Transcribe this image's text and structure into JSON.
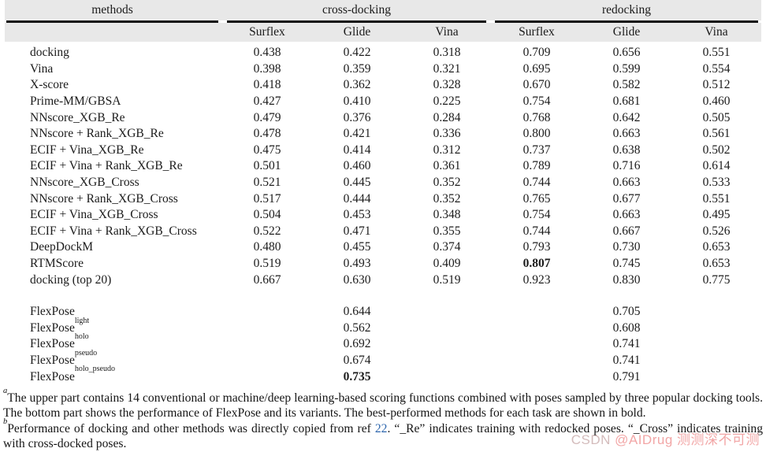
{
  "table": {
    "groups": [
      {
        "label": "methods"
      },
      {
        "label": "cross-docking"
      },
      {
        "label": "redocking"
      }
    ],
    "sub_headers": [
      "Surflex",
      "Glide",
      "Vina",
      "Surflex",
      "Glide",
      "Vina"
    ],
    "rows": [
      {
        "method": "docking",
        "sup": "",
        "values": [
          "0.438",
          "0.422",
          "0.318",
          "0.709",
          "0.656",
          "0.551"
        ],
        "bold": []
      },
      {
        "method": "Vina",
        "sup": "",
        "values": [
          "0.398",
          "0.359",
          "0.321",
          "0.695",
          "0.599",
          "0.554"
        ],
        "bold": []
      },
      {
        "method": "X-score",
        "sup": "",
        "values": [
          "0.418",
          "0.362",
          "0.328",
          "0.670",
          "0.582",
          "0.512"
        ],
        "bold": []
      },
      {
        "method": "Prime-MM/GBSA",
        "sup": "",
        "values": [
          "0.427",
          "0.410",
          "0.225",
          "0.754",
          "0.681",
          "0.460"
        ],
        "bold": []
      },
      {
        "method": "NNscore_XGB_Re",
        "sup": "",
        "values": [
          "0.479",
          "0.376",
          "0.284",
          "0.768",
          "0.642",
          "0.505"
        ],
        "bold": []
      },
      {
        "method": "NNscore + Rank_XGB_Re",
        "sup": "",
        "values": [
          "0.478",
          "0.421",
          "0.336",
          "0.800",
          "0.663",
          "0.561"
        ],
        "bold": []
      },
      {
        "method": "ECIF + Vina_XGB_Re",
        "sup": "",
        "values": [
          "0.475",
          "0.414",
          "0.312",
          "0.737",
          "0.638",
          "0.502"
        ],
        "bold": []
      },
      {
        "method": "ECIF + Vina + Rank_XGB_Re",
        "sup": "",
        "values": [
          "0.501",
          "0.460",
          "0.361",
          "0.789",
          "0.716",
          "0.614"
        ],
        "bold": []
      },
      {
        "method": "NNscore_XGB_Cross",
        "sup": "",
        "values": [
          "0.521",
          "0.445",
          "0.352",
          "0.744",
          "0.663",
          "0.533"
        ],
        "bold": []
      },
      {
        "method": "NNscore + Rank_XGB_Cross",
        "sup": "",
        "values": [
          "0.517",
          "0.444",
          "0.352",
          "0.765",
          "0.677",
          "0.551"
        ],
        "bold": []
      },
      {
        "method": "ECIF + Vina_XGB_Cross",
        "sup": "",
        "values": [
          "0.504",
          "0.453",
          "0.348",
          "0.754",
          "0.663",
          "0.495"
        ],
        "bold": []
      },
      {
        "method": "ECIF + Vina + Rank_XGB_Cross",
        "sup": "",
        "values": [
          "0.522",
          "0.471",
          "0.355",
          "0.744",
          "0.667",
          "0.526"
        ],
        "bold": []
      },
      {
        "method": "DeepDockM",
        "sup": "",
        "values": [
          "0.480",
          "0.455",
          "0.374",
          "0.793",
          "0.730",
          "0.653"
        ],
        "bold": []
      },
      {
        "method": "RTMScore",
        "sup": "",
        "values": [
          "0.519",
          "0.493",
          "0.409",
          "0.807",
          "0.745",
          "0.653"
        ],
        "bold": [
          3
        ]
      },
      {
        "method": "docking (top 20)",
        "sup": "",
        "values": [
          "0.667",
          "0.630",
          "0.519",
          "0.923",
          "0.830",
          "0.775"
        ],
        "bold": []
      }
    ],
    "flexpose_rows": [
      {
        "method": "FlexPose",
        "sup": "",
        "values": [
          "",
          "0.644",
          "",
          "",
          "0.705",
          ""
        ],
        "bold": []
      },
      {
        "method": "FlexPose",
        "sup": "light",
        "values": [
          "",
          "0.562",
          "",
          "",
          "0.608",
          ""
        ],
        "bold": []
      },
      {
        "method": "FlexPose",
        "sup": "holo",
        "values": [
          "",
          "0.692",
          "",
          "",
          "0.741",
          ""
        ],
        "bold": []
      },
      {
        "method": "FlexPose",
        "sup": "pseudo",
        "values": [
          "",
          "0.674",
          "",
          "",
          "0.741",
          ""
        ],
        "bold": []
      },
      {
        "method": "FlexPose",
        "sup": "holo_pseudo",
        "values": [
          "",
          "0.735",
          "",
          "",
          "0.791",
          ""
        ],
        "bold": [
          1
        ]
      }
    ]
  },
  "footnote": {
    "para1": {
      "parts": [
        {
          "type": "sup",
          "text": "a"
        },
        {
          "type": "text",
          "text": "The upper part contains 14 conventional or machine/deep learning-based scoring functions combined with poses sampled by three popular docking tools. The bottom part shows the performance of FlexPose and its variants. The best-performed methods for each task are shown in bold."
        }
      ]
    },
    "para2": {
      "parts": [
        {
          "type": "sup",
          "text": "b"
        },
        {
          "type": "text",
          "text": "Performance of docking and other methods was directly copied from ref "
        },
        {
          "type": "link",
          "text": "22"
        },
        {
          "type": "text",
          "text": ". “_Re” indicates training with redocked poses. “_Cross” indicates training with cross-docked poses."
        }
      ]
    }
  },
  "watermark": {
    "prefix": "CSDN ",
    "handle": "@AIDrug 测测深不可测",
    "prefix_color": "#d4bcbc",
    "color": "#f2a6a6"
  },
  "colors": {
    "header_bg": "#e8e8e8",
    "rule": "#111111",
    "link": "#2d66ad",
    "text": "#1b1b1b"
  }
}
